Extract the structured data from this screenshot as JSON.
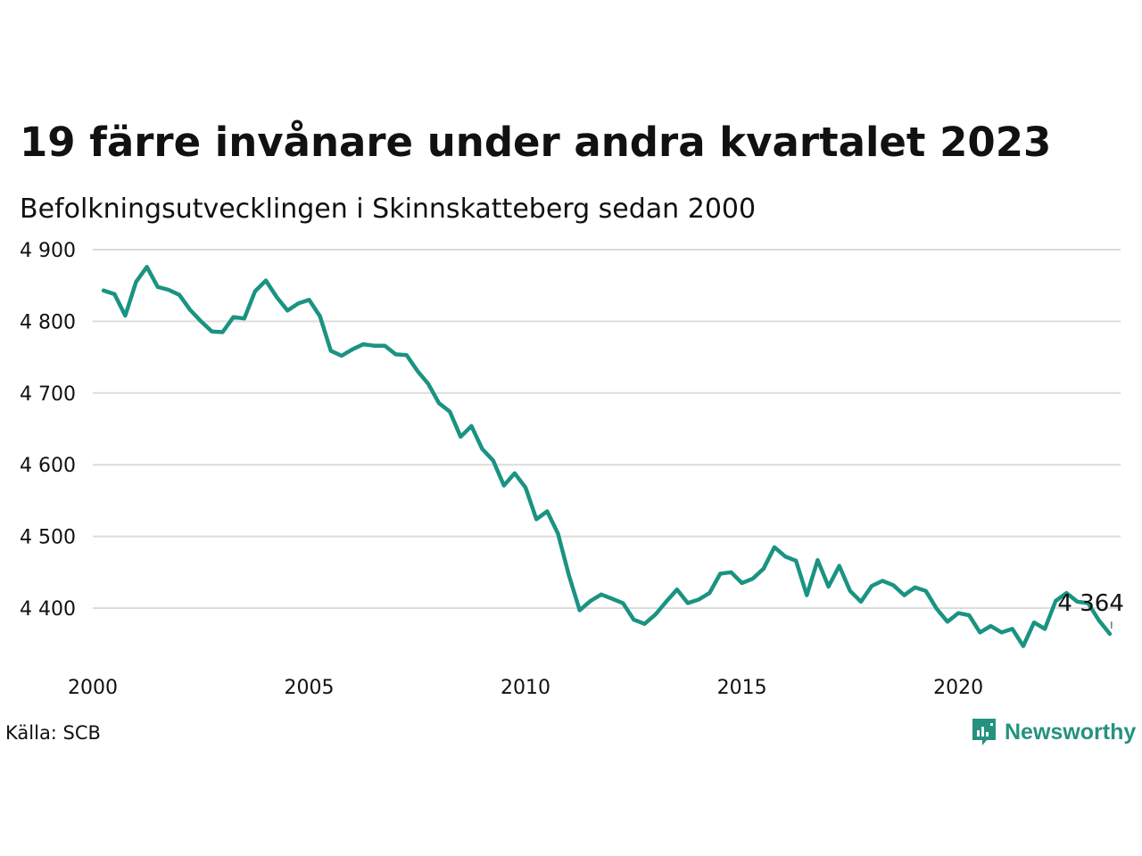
{
  "title": "19 färre invånare under andra kvartalet 2023",
  "subtitle": "Befolkningsutvecklingen i Skinnskatteberg sedan 2000",
  "source": "Källa: SCB",
  "brand": {
    "name": "Newsworthy",
    "icon": "newsworthy-logo-icon",
    "color": "#25927f"
  },
  "chart_data": {
    "type": "line",
    "line_color": "#1a9382",
    "grid": true,
    "xlim": [
      2000.0,
      2023.75
    ],
    "ylim": [
      4340,
      4900
    ],
    "y_ticks": [
      4400,
      4500,
      4600,
      4700,
      4800,
      4900
    ],
    "y_tick_labels": [
      "4 400",
      "4 500",
      "4 600",
      "4 700",
      "4 800",
      "4 900"
    ],
    "x_ticks": [
      2000,
      2005,
      2010,
      2015,
      2020
    ],
    "x_tick_labels": [
      "2000",
      "2005",
      "2010",
      "2015",
      "2020"
    ],
    "end_label": "4 364",
    "series": [
      {
        "x": [
          2000.25,
          2000.5,
          2000.75,
          2001.0,
          2001.25,
          2001.5,
          2001.75,
          2002.0,
          2002.25,
          2002.5,
          2002.75,
          2003.0,
          2003.25,
          2003.5,
          2003.75,
          2004.0,
          2004.25,
          2004.5,
          2004.75,
          2005.0,
          2005.25,
          2005.5,
          2005.75,
          2006.0,
          2006.25,
          2006.5,
          2006.75,
          2007.0,
          2007.25,
          2007.5,
          2007.75,
          2008.0,
          2008.25,
          2008.5,
          2008.75,
          2009.0,
          2009.25,
          2009.5,
          2009.75,
          2010.0,
          2010.25,
          2010.5,
          2010.75,
          2011.0,
          2011.25,
          2011.5,
          2011.75,
          2012.0,
          2012.25,
          2012.5,
          2012.75,
          2013.0,
          2013.25,
          2013.5,
          2013.75,
          2014.0,
          2014.25,
          2014.5,
          2014.75,
          2015.0,
          2015.25,
          2015.5,
          2015.75,
          2016.0,
          2016.25,
          2016.5,
          2016.75,
          2017.0,
          2017.25,
          2017.5,
          2017.75,
          2018.0,
          2018.25,
          2018.5,
          2018.75,
          2019.0,
          2019.25,
          2019.5,
          2019.75,
          2020.0,
          2020.25,
          2020.5,
          2020.75,
          2021.0,
          2021.25,
          2021.5,
          2021.75,
          2022.0,
          2022.25,
          2022.5,
          2022.75,
          2023.0,
          2023.25,
          2023.5
        ],
        "y": [
          4843,
          4838,
          4808,
          4855,
          4876,
          4848,
          4844,
          4837,
          4816,
          4800,
          4786,
          4785,
          4806,
          4804,
          4842,
          4857,
          4834,
          4815,
          4825,
          4830,
          4807,
          4759,
          4752,
          4761,
          4768,
          4766,
          4766,
          4754,
          4753,
          4731,
          4713,
          4686,
          4674,
          4639,
          4654,
          4622,
          4606,
          4571,
          4588,
          4568,
          4524,
          4535,
          4504,
          4446,
          4397,
          4410,
          4419,
          4413,
          4407,
          4384,
          4378,
          4391,
          4409,
          4426,
          4407,
          4412,
          4421,
          4448,
          4450,
          4435,
          4441,
          4455,
          4485,
          4472,
          4466,
          4418,
          4467,
          4430,
          4459,
          4424,
          4409,
          4431,
          4438,
          4432,
          4418,
          4429,
          4424,
          4399,
          4381,
          4393,
          4390,
          4366,
          4375,
          4366,
          4371,
          4347,
          4380,
          4371,
          4410,
          4421,
          4409,
          4407,
          4383,
          4364
        ]
      }
    ]
  }
}
